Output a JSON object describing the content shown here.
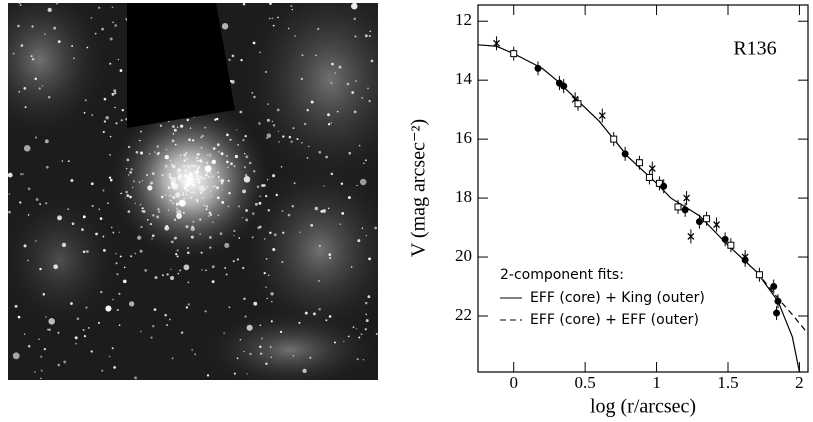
{
  "chart_data": {
    "type": "scatter",
    "annotation": "R136",
    "x_label": "log (r/arcsec)",
    "y_label": "V (mag arcsec⁻²)",
    "xlim": [
      -0.25,
      2.06
    ],
    "xticks": [
      0,
      0.5,
      1,
      1.5,
      2
    ],
    "ylim": [
      11.45,
      23.9
    ],
    "y_inverted": true,
    "yticks": [
      12,
      14,
      16,
      18,
      20,
      22
    ],
    "legend_title": "2-component fits:",
    "series": [
      {
        "marker": "cross",
        "color": "#000000",
        "x": [
          -0.12,
          0.43,
          0.62,
          0.97,
          1.21,
          1.24,
          1.42,
          1.62
        ],
        "values": [
          12.75,
          14.65,
          15.2,
          17.0,
          18.0,
          19.3,
          18.9,
          20.0
        ]
      },
      {
        "marker": "square",
        "color": "#000000",
        "x": [
          0,
          0.45,
          0.7,
          0.88,
          0.95,
          1.02,
          1.15,
          1.35,
          1.52,
          1.72
        ],
        "values": [
          13.1,
          14.8,
          16.0,
          16.8,
          17.3,
          17.5,
          18.3,
          18.7,
          19.6,
          20.6
        ]
      },
      {
        "marker": "circle",
        "color": "#000000",
        "x": [
          0.17,
          0.32,
          0.35,
          0.78,
          1.05,
          1.2,
          1.3,
          1.48,
          1.62,
          1.82,
          1.84,
          1.85
        ],
        "values": [
          13.6,
          14.1,
          14.2,
          16.5,
          17.6,
          18.4,
          18.8,
          19.4,
          20.1,
          21.0,
          21.9,
          21.5
        ]
      }
    ],
    "lines": [
      {
        "name": "EFF (core) + King (outer)",
        "dash": "solid",
        "color": "#000000",
        "x": [
          -0.25,
          -0.12,
          0,
          0.2,
          0.3,
          0.45,
          0.6,
          0.8,
          1.0,
          1.1,
          1.3,
          1.5,
          1.7,
          1.85,
          1.95,
          2.0
        ],
        "values": [
          12.8,
          12.85,
          13.1,
          13.6,
          14.0,
          14.7,
          15.4,
          16.6,
          17.5,
          18.0,
          18.6,
          19.6,
          20.5,
          21.5,
          22.7,
          23.9
        ]
      },
      {
        "name": "EFF (core) + EFF (outer)",
        "dash": "dashed",
        "color": "#000000",
        "x": [
          1.7,
          1.85,
          1.95,
          2.06
        ],
        "values": [
          20.5,
          21.4,
          21.95,
          22.6
        ]
      }
    ]
  }
}
